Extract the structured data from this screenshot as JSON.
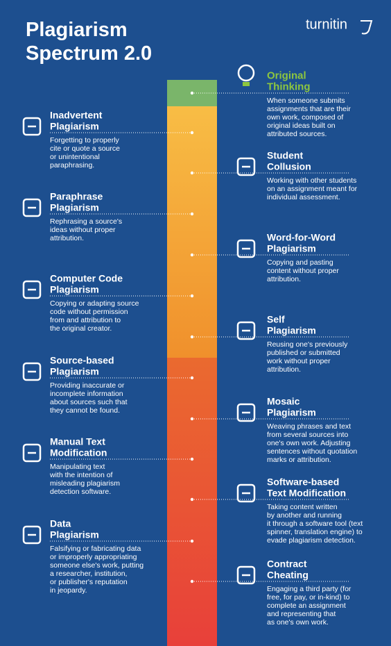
{
  "header": {
    "title": [
      "Plagiarism",
      "Spectrum 2.0"
    ],
    "logo": "turnitin"
  },
  "items": [
    {
      "title": [
        "Original",
        "Thinking"
      ],
      "description": [
        "When someone submits",
        "assignments that are their",
        "own work, composed of",
        "original ideas built on",
        "attributed sources."
      ]
    },
    {
      "title": [
        "Inadvertent",
        "Plagiarism"
      ],
      "description": [
        "Forgetting to properly",
        "cite or quote a source",
        "or unintentional",
        "paraphrasing."
      ]
    },
    {
      "title": [
        "Student",
        "Collusion"
      ],
      "description": [
        "Working with other students",
        "on an assignment meant for",
        "individual assessment."
      ]
    },
    {
      "title": [
        "Paraphrase",
        "Plagiarism"
      ],
      "description": [
        "Rephrasing a source's",
        "ideas without proper",
        "attribution."
      ]
    },
    {
      "title": [
        "Word-for-Word",
        "Plagiarism"
      ],
      "description": [
        "Copying and pasting",
        "content without proper",
        "attribution."
      ]
    },
    {
      "title": [
        "Computer Code",
        "Plagiarism"
      ],
      "description": [
        "Copying or adapting source",
        "code without permission",
        "from and attribution to",
        "the original creator."
      ]
    },
    {
      "title": [
        "Self",
        "Plagiarism"
      ],
      "description": [
        "Reusing one's previously",
        "published or submitted",
        "work without proper",
        "attribution."
      ]
    },
    {
      "title": [
        "Source-based",
        "Plagiarism"
      ],
      "description": [
        "Providing inaccurate or",
        "incomplete information",
        "about sources such that",
        "they cannot be found."
      ]
    },
    {
      "title": [
        "Mosaic",
        "Plagiarism"
      ],
      "description": [
        "Weaving phrases and text",
        "from several sources into",
        "one's own work. Adjusting",
        "sentences without quotation",
        "marks or attribution."
      ]
    },
    {
      "title": [
        "Manual Text",
        "Modification"
      ],
      "description": [
        "Manipulating text",
        "with the intention of",
        "misleading plagiarism",
        "detection software."
      ]
    },
    {
      "title": [
        "Software-based",
        "Text Modification"
      ],
      "description": [
        "Taking content written",
        "by another and running",
        "it through a software tool (text",
        "spinner, translation engine) to",
        "evade plagiarism detection."
      ]
    },
    {
      "title": [
        "Data",
        "Plagiarism"
      ],
      "description": [
        "Falsifying or fabricating data",
        "or improperly appropriating",
        "someone else's work, putting",
        "a researcher, institution,",
        "or publisher's reputation",
        "in jeopardy."
      ]
    },
    {
      "title": [
        "Contract",
        "Cheating"
      ],
      "description": [
        "Engaging a third party (for",
        "free, for pay, or in-kind) to",
        "complete an assignment",
        "and representing that",
        "as one's own work."
      ]
    }
  ]
}
